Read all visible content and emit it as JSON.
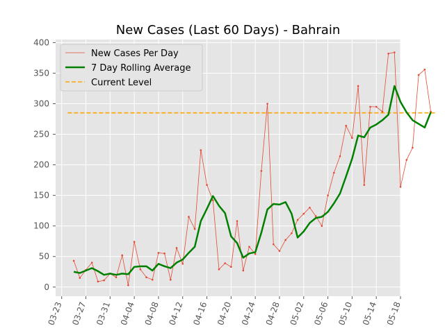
{
  "chart_data": {
    "type": "line",
    "title": "New Cases (Last 60 Days) - Bahrain",
    "xlabel": "",
    "ylabel": "",
    "x_start": "2020-03-25",
    "xlim": [
      "2020-03-22",
      "2020-05-18"
    ],
    "ylim": [
      -15,
      405
    ],
    "yticks": [
      0,
      50,
      100,
      150,
      200,
      250,
      300,
      350,
      400
    ],
    "xticks": [
      "03-23",
      "03-27",
      "03-31",
      "04-04",
      "04-08",
      "04-12",
      "04-16",
      "04-20",
      "04-24",
      "04-28",
      "05-02",
      "05-06",
      "05-10",
      "05-14",
      "05-18"
    ],
    "grid": true,
    "legend_position": "top-left",
    "background": "#e5e5e5",
    "series": [
      {
        "name": "New Cases Per Day",
        "color": "#e24a33",
        "style": "thin line with point markers",
        "values": [
          43,
          15,
          28,
          40,
          9,
          11,
          22,
          16,
          52,
          3,
          74,
          29,
          16,
          12,
          56,
          55,
          12,
          64,
          38,
          115,
          95,
          224,
          167,
          142,
          29,
          39,
          33,
          108,
          27,
          66,
          54,
          190,
          300,
          70,
          59,
          77,
          88,
          110,
          120,
          130,
          116,
          100,
          150,
          187,
          214,
          264,
          244,
          329,
          167,
          295,
          295,
          287,
          382,
          384,
          164,
          208,
          228,
          347,
          356,
          287
        ]
      },
      {
        "name": "7 Day Rolling Average",
        "color": "#008000",
        "style": "thick line",
        "values": [
          25,
          23,
          27,
          31,
          26,
          20,
          22,
          20,
          22,
          21,
          33,
          34,
          34,
          27,
          38,
          34,
          31,
          40,
          45,
          56,
          66,
          108,
          128,
          149,
          133,
          121,
          83,
          72,
          48,
          55,
          57,
          89,
          127,
          136,
          135,
          139,
          120,
          81,
          91,
          105,
          113,
          115,
          123,
          137,
          153,
          181,
          210,
          248,
          245,
          261,
          266,
          273,
          282,
          329,
          303,
          286,
          273,
          267,
          261,
          286
        ]
      },
      {
        "name": "Current Level",
        "color": "#ffa500",
        "style": "dashed horizontal line",
        "value": 285
      }
    ]
  }
}
